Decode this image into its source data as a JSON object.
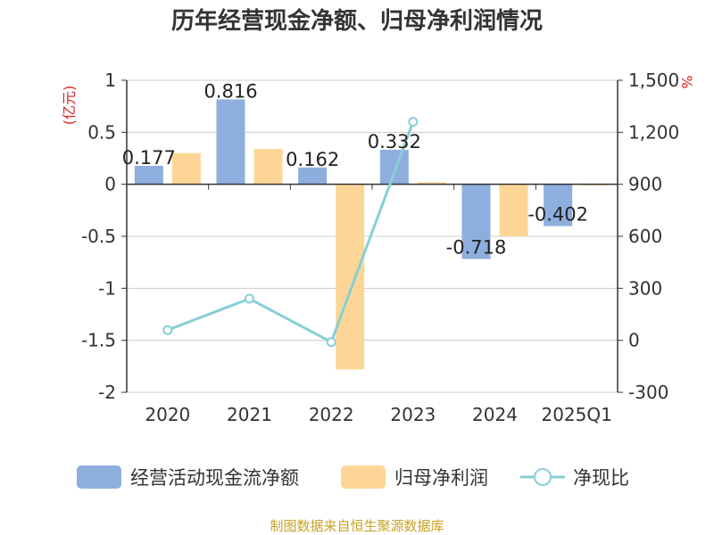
{
  "title": "历年经营现金净额、归母净利润情况",
  "source": "制图数据来自恒生聚源数据库",
  "colors": {
    "cash": "#8eaedd",
    "profit": "#fdd697",
    "ratio": "#86cfd6"
  },
  "chart_data": {
    "type": "bar",
    "categories": [
      "2020",
      "2021",
      "2022",
      "2023",
      "2024",
      "2025Q1"
    ],
    "series": [
      {
        "name": "经营活动现金流净额",
        "type": "bar",
        "axis": "left",
        "values": [
          0.177,
          0.816,
          0.162,
          0.332,
          -0.718,
          -0.402
        ],
        "labels": [
          "0.177",
          "0.816",
          "0.162",
          "0.332",
          "-0.718",
          "-0.402"
        ]
      },
      {
        "name": "归母净利润",
        "type": "bar",
        "axis": "left",
        "values": [
          0.3,
          0.34,
          -1.78,
          0.02,
          -0.5,
          -0.01
        ]
      },
      {
        "name": "净现比",
        "type": "line",
        "axis": "right",
        "values": [
          59,
          240,
          -10,
          1260,
          null,
          null
        ]
      }
    ],
    "left_axis": {
      "unit": "(亿元)",
      "min": -2,
      "max": 1,
      "ticks": [
        1,
        0.5,
        0,
        -0.5,
        -1,
        -1.5,
        -2
      ],
      "tick_labels": [
        "1",
        "0.5",
        "0",
        "-0.5",
        "-1",
        "-1.5",
        "-2"
      ]
    },
    "right_axis": {
      "unit": "%",
      "min": -300,
      "max": 1500,
      "ticks": [
        1500,
        1200,
        900,
        600,
        300,
        0,
        -300
      ],
      "tick_labels": [
        "1,500",
        "1,200",
        "900",
        "600",
        "300",
        "0",
        "-300"
      ]
    },
    "grid": true,
    "legend_position": "bottom"
  }
}
